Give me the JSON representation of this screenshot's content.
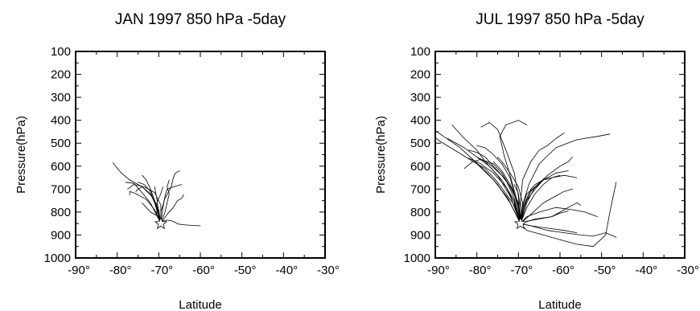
{
  "chart_data": [
    {
      "type": "line",
      "title": "JAN 1997 850 hPa -5day",
      "xlabel": "Latitude",
      "ylabel": "Pressure(hPa)",
      "xlim": [
        -90,
        -30
      ],
      "ylim": [
        1000,
        100
      ],
      "y_inverted": true,
      "x_ticks": [
        -90,
        -80,
        -70,
        -60,
        -50,
        -40,
        -30
      ],
      "x_tick_labels": [
        "-90°",
        "-80°",
        "-70°",
        "-60°",
        "-50°",
        "-40°",
        "-30°"
      ],
      "y_ticks": [
        100,
        200,
        300,
        400,
        500,
        600,
        700,
        800,
        900,
        1000
      ],
      "y_tick_labels": [
        "100",
        "200",
        "300",
        "400",
        "500",
        "600",
        "700",
        "800",
        "900",
        "1000"
      ],
      "origin_marker": {
        "symbol": "star",
        "x": -69.5,
        "y": 850
      },
      "series": [
        {
          "x": [
            -69.5,
            -70,
            -71.5,
            -74,
            -77,
            -79,
            -80.5,
            -81
          ],
          "y": [
            850,
            790,
            735,
            690,
            660,
            630,
            598,
            585
          ]
        },
        {
          "x": [
            -69.5,
            -69,
            -68,
            -67,
            -66,
            -65.5,
            -64,
            -62,
            -60
          ],
          "y": [
            850,
            840,
            835,
            838,
            845,
            852,
            855,
            858,
            860
          ]
        },
        {
          "x": [
            -69.5,
            -69.5,
            -68.5,
            -67,
            -66.5,
            -66,
            -65
          ],
          "y": [
            850,
            800,
            740,
            690,
            650,
            630,
            620
          ]
        },
        {
          "x": [
            -69.5,
            -70.5,
            -72,
            -74,
            -75,
            -75.5
          ],
          "y": [
            850,
            780,
            720,
            690,
            700,
            710
          ]
        },
        {
          "x": [
            -69.5,
            -70,
            -70.5,
            -71
          ],
          "y": [
            850,
            800,
            740,
            690
          ]
        },
        {
          "x": [
            -69.5,
            -68.5,
            -68,
            -67.5,
            -68,
            -67.5
          ],
          "y": [
            850,
            800,
            760,
            720,
            690,
            660
          ]
        },
        {
          "x": [
            -69.5,
            -71,
            -73,
            -75.5,
            -77,
            -77
          ],
          "y": [
            850,
            790,
            745,
            720,
            710,
            725
          ]
        },
        {
          "x": [
            -69.5,
            -70,
            -71,
            -72,
            -73,
            -74
          ],
          "y": [
            850,
            800,
            750,
            700,
            660,
            640
          ]
        },
        {
          "x": [
            -69.5,
            -69,
            -68.5,
            -68,
            -66.5,
            -64.5
          ],
          "y": [
            850,
            780,
            730,
            700,
            690,
            680
          ]
        },
        {
          "x": [
            -69.5,
            -71,
            -72,
            -73.5,
            -75
          ],
          "y": [
            850,
            760,
            710,
            680,
            670
          ]
        },
        {
          "x": [
            -69.5,
            -70.5,
            -70.5,
            -69.5,
            -69
          ],
          "y": [
            850,
            810,
            760,
            720,
            690
          ]
        },
        {
          "x": [
            -69.5,
            -72,
            -74.5,
            -76,
            -78
          ],
          "y": [
            850,
            760,
            705,
            675,
            670
          ]
        },
        {
          "x": [
            -69.5,
            -68,
            -66.5,
            -65.5,
            -64.5,
            -64
          ],
          "y": [
            850,
            810,
            780,
            750,
            740,
            725
          ]
        },
        {
          "x": [
            -69.5,
            -70,
            -72,
            -73,
            -74
          ],
          "y": [
            850,
            820,
            800,
            780,
            760
          ]
        },
        {
          "x": [
            -69.5,
            -69.5,
            -71,
            -73.5,
            -76,
            -77.5
          ],
          "y": [
            850,
            770,
            715,
            690,
            680,
            700
          ]
        }
      ]
    },
    {
      "type": "line",
      "title": "JUL 1997 850 hPa -5day",
      "xlabel": "Latitude",
      "ylabel": "Pressure(hPa)",
      "xlim": [
        -90,
        -30
      ],
      "ylim": [
        1000,
        100
      ],
      "y_inverted": true,
      "x_ticks": [
        -90,
        -80,
        -70,
        -60,
        -50,
        -40,
        -30
      ],
      "x_tick_labels": [
        "-90°",
        "-80°",
        "-70°",
        "-60°",
        "-50°",
        "-40°",
        "-30°"
      ],
      "y_ticks": [
        100,
        200,
        300,
        400,
        500,
        600,
        700,
        800,
        900,
        1000
      ],
      "y_tick_labels": [
        "100",
        "200",
        "300",
        "400",
        "500",
        "600",
        "700",
        "800",
        "900",
        "1000"
      ],
      "origin_marker": {
        "symbol": "star",
        "x": -69.5,
        "y": 850
      },
      "series": [
        {
          "x": [
            -69.5,
            -72,
            -75,
            -78,
            -81,
            -84,
            -88,
            -90
          ],
          "y": [
            850,
            760,
            680,
            620,
            570,
            520,
            470,
            445
          ]
        },
        {
          "x": [
            -69.5,
            -72.5,
            -76,
            -80,
            -84,
            -89,
            -90
          ],
          "y": [
            850,
            740,
            660,
            590,
            545,
            490,
            475
          ]
        },
        {
          "x": [
            -69.5,
            -71,
            -74,
            -77,
            -80,
            -83,
            -87
          ],
          "y": [
            850,
            750,
            660,
            600,
            560,
            520,
            480
          ]
        },
        {
          "x": [
            -69.5,
            -70,
            -72,
            -74,
            -76,
            -79,
            -81,
            -83
          ],
          "y": [
            850,
            760,
            690,
            630,
            590,
            570,
            580,
            610
          ]
        },
        {
          "x": [
            -69.5,
            -72,
            -75,
            -78,
            -80,
            -83,
            -86
          ],
          "y": [
            850,
            730,
            640,
            580,
            530,
            480,
            420
          ]
        },
        {
          "x": [
            -69.5,
            -70,
            -71,
            -73,
            -75,
            -77,
            -79
          ],
          "y": [
            850,
            730,
            630,
            530,
            440,
            410,
            430
          ]
        },
        {
          "x": [
            -69.5,
            -70.5,
            -72,
            -73.5,
            -74.5,
            -73,
            -70,
            -68
          ],
          "y": [
            850,
            740,
            640,
            550,
            470,
            420,
            400,
            420
          ]
        },
        {
          "x": [
            -69.5,
            -69.5,
            -69,
            -67,
            -65,
            -63,
            -61,
            -59
          ],
          "y": [
            850,
            760,
            660,
            580,
            530,
            510,
            480,
            455
          ]
        },
        {
          "x": [
            -69.5,
            -69,
            -67.5,
            -65,
            -61,
            -56,
            -51,
            -48
          ],
          "y": [
            850,
            770,
            680,
            590,
            520,
            485,
            470,
            460
          ]
        },
        {
          "x": [
            -69.5,
            -68,
            -66,
            -64,
            -62,
            -59,
            -56
          ],
          "y": [
            850,
            780,
            720,
            680,
            650,
            640,
            650
          ]
        },
        {
          "x": [
            -69.5,
            -67,
            -63,
            -59,
            -55,
            -52,
            -49,
            -46.5
          ],
          "y": [
            850,
            860,
            880,
            890,
            900,
            905,
            890,
            910
          ]
        },
        {
          "x": [
            -69.5,
            -68,
            -65,
            -61,
            -57,
            -54,
            -51
          ],
          "y": [
            850,
            820,
            800,
            780,
            790,
            800,
            820
          ]
        },
        {
          "x": [
            -69.5,
            -68,
            -64,
            -60,
            -56,
            -52,
            -49,
            -48,
            -46.5
          ],
          "y": [
            850,
            880,
            900,
            920,
            940,
            950,
            900,
            800,
            670
          ]
        },
        {
          "x": [
            -69.5,
            -66,
            -62,
            -59,
            -57,
            -56,
            -55
          ],
          "y": [
            850,
            830,
            820,
            790,
            770,
            760,
            770
          ]
        },
        {
          "x": [
            -69.5,
            -69,
            -68,
            -66,
            -64,
            -62,
            -60
          ],
          "y": [
            850,
            780,
            720,
            690,
            660,
            650,
            640
          ]
        },
        {
          "x": [
            -69.5,
            -70,
            -71,
            -72,
            -74,
            -76,
            -78,
            -80
          ],
          "y": [
            850,
            790,
            720,
            650,
            590,
            550,
            520,
            510
          ]
        },
        {
          "x": [
            -69.5,
            -69,
            -68,
            -67,
            -66,
            -64,
            -62
          ],
          "y": [
            850,
            790,
            740,
            700,
            680,
            660,
            650
          ]
        },
        {
          "x": [
            -69.5,
            -71,
            -73,
            -76,
            -79,
            -82
          ],
          "y": [
            850,
            760,
            690,
            630,
            590,
            565
          ]
        },
        {
          "x": [
            -69.5,
            -68.5,
            -67,
            -64,
            -61,
            -58
          ],
          "y": [
            850,
            770,
            710,
            660,
            630,
            620
          ]
        },
        {
          "x": [
            -69.5,
            -67,
            -64,
            -61,
            -59,
            -57
          ],
          "y": [
            850,
            810,
            760,
            730,
            710,
            700
          ]
        },
        {
          "x": [
            -69.5,
            -68,
            -65,
            -62,
            -60,
            -58
          ],
          "y": [
            850,
            840,
            830,
            820,
            805,
            795
          ]
        },
        {
          "x": [
            -69.5,
            -70,
            -71.5,
            -74,
            -77,
            -80
          ],
          "y": [
            850,
            770,
            700,
            640,
            590,
            560
          ]
        },
        {
          "x": [
            -69.5,
            -70,
            -71,
            -73,
            -75,
            -78,
            -80
          ],
          "y": [
            850,
            820,
            770,
            720,
            670,
            610,
            590
          ]
        },
        {
          "x": [
            -69.5,
            -70,
            -72,
            -74,
            -76
          ],
          "y": [
            850,
            760,
            680,
            620,
            580
          ]
        },
        {
          "x": [
            -69.5,
            -69,
            -68,
            -66,
            -64,
            -63
          ],
          "y": [
            850,
            800,
            750,
            700,
            660,
            650
          ]
        },
        {
          "x": [
            -69.5,
            -67,
            -63,
            -59,
            -56
          ],
          "y": [
            850,
            860,
            870,
            880,
            890
          ]
        },
        {
          "x": [
            -69.5,
            -69,
            -70,
            -72,
            -74,
            -75
          ],
          "y": [
            850,
            760,
            690,
            630,
            580,
            560
          ]
        },
        {
          "x": [
            -69.5,
            -69.5,
            -70,
            -71
          ],
          "y": [
            850,
            780,
            720,
            680
          ]
        },
        {
          "x": [
            -69.5,
            -71,
            -73,
            -76,
            -78,
            -80,
            -82
          ],
          "y": [
            850,
            740,
            660,
            600,
            560,
            540,
            530
          ]
        },
        {
          "x": [
            -69.5,
            -68,
            -66,
            -63,
            -60,
            -58,
            -57
          ],
          "y": [
            850,
            760,
            690,
            640,
            600,
            580,
            560
          ]
        }
      ]
    }
  ]
}
